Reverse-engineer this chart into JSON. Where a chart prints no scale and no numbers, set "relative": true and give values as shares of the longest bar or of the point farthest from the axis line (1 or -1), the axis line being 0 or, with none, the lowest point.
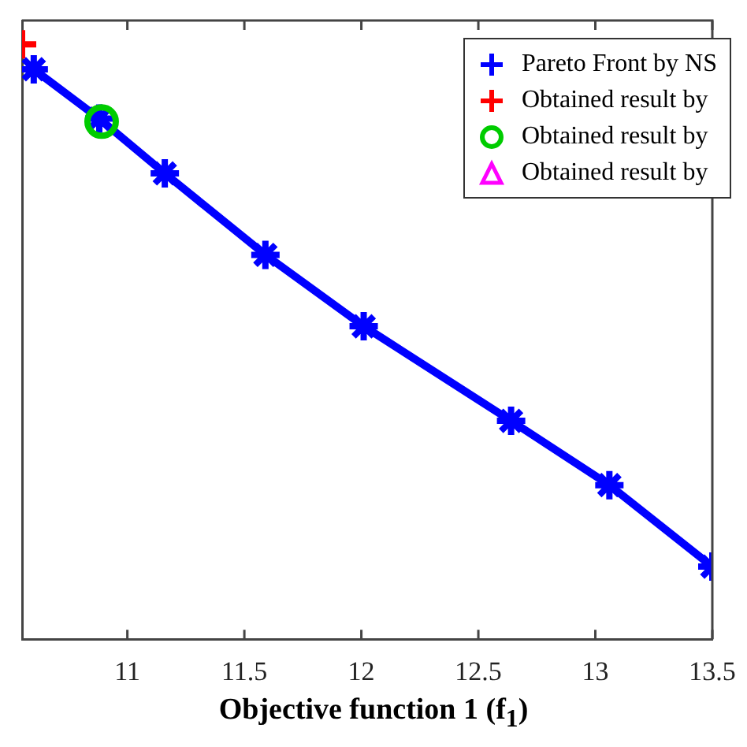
{
  "chart_data": {
    "type": "scatter",
    "xlabel": "Objective function 1 (f$_{1}$)",
    "relative": true,
    "tick_labels": "x",
    "legend": "top right",
    "grid": false,
    "xlim": [
      10.55,
      13.5
    ],
    "xticks": [
      11,
      11.5,
      12,
      12.5,
      13,
      13.5
    ],
    "series": [
      {
        "name": "Pareto Front by NS",
        "type": "line",
        "marker": "cross",
        "color": "#0000ff",
        "x": [
          10.6,
          10.88,
          11.16,
          11.59,
          12.01,
          12.64,
          13.06,
          13.5
        ],
        "values": [
          0.958,
          0.875,
          0.783,
          0.646,
          0.526,
          0.367,
          0.259,
          0.122
        ]
      },
      {
        "name": "Obtained result by",
        "marker": "cross",
        "color": "#ff0000",
        "x": [
          10.55
        ],
        "values": [
          1
        ]
      },
      {
        "name": "Obtained result by",
        "marker": "circle",
        "color": "#00cc00",
        "x": [
          10.89
        ],
        "values": [
          0.87
        ]
      },
      {
        "name": "Obtained result by",
        "marker": "triangle",
        "color": "#ff00ff"
      }
    ]
  }
}
